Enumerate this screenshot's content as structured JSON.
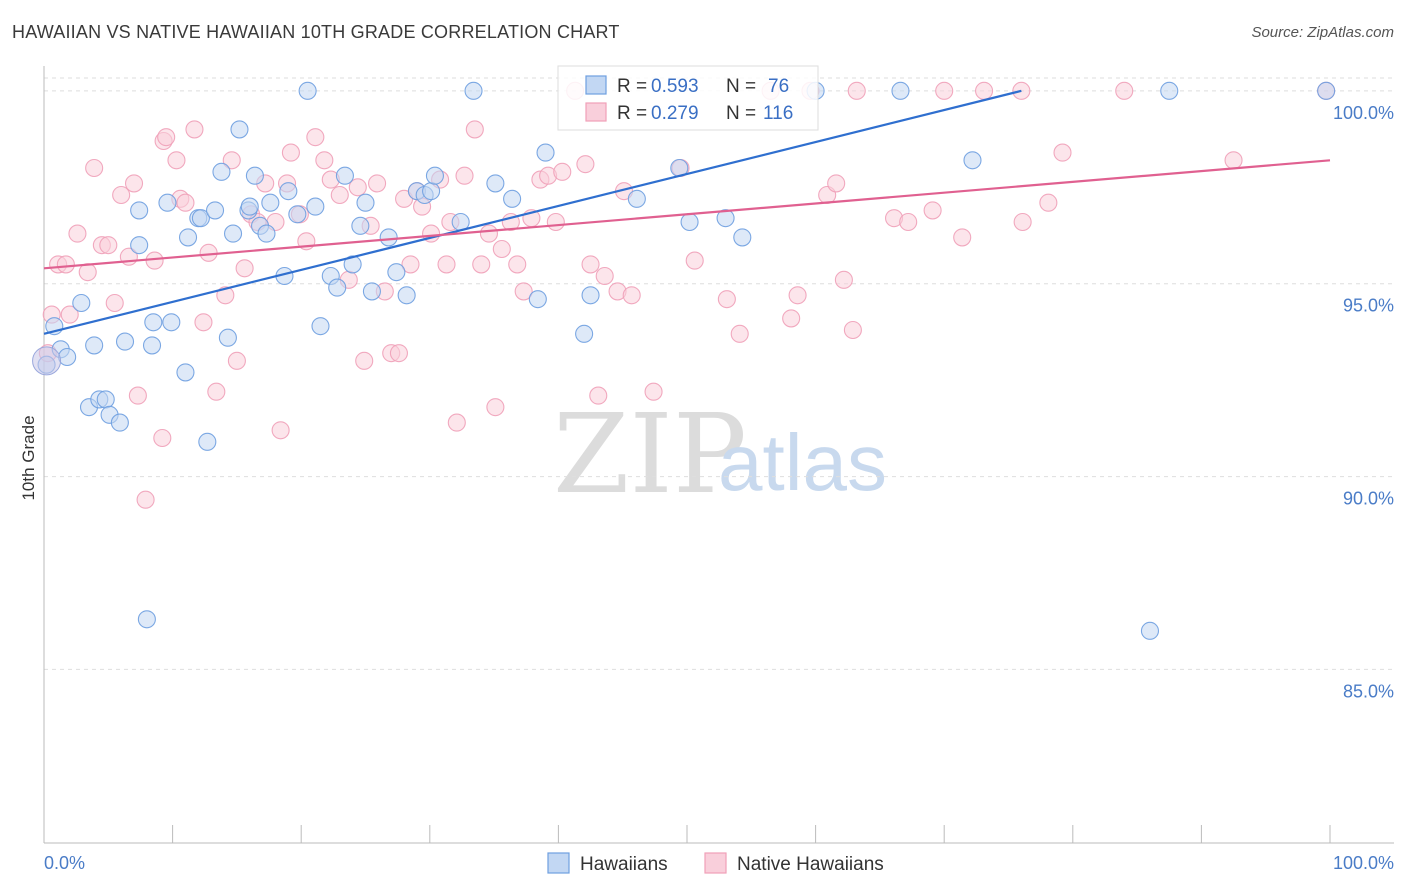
{
  "header": {
    "title": "HAWAIIAN VS NATIVE HAWAIIAN 10TH GRADE CORRELATION CHART",
    "source": "Source: ZipAtlas.com"
  },
  "watermark": {
    "zip": "ZIP",
    "atlas": "atlas"
  },
  "legend": {
    "rows": [
      {
        "r_label": "R =",
        "r_value": "0.593",
        "n_label": "N =",
        "n_value": "76",
        "color": "#6e9fe0"
      },
      {
        "r_label": "R =",
        "r_value": "0.279",
        "n_label": "N =",
        "n_value": "116",
        "color": "#f0a0b8"
      }
    ]
  },
  "bottom_legend": {
    "items": [
      {
        "label": "Hawaiians"
      },
      {
        "label": "Native Hawaiians"
      }
    ]
  },
  "chart_data": {
    "type": "scatter",
    "title": "HAWAIIAN VS NATIVE HAWAIIAN 10TH GRADE CORRELATION CHART",
    "xlabel": "",
    "ylabel": "10th Grade",
    "xlim": [
      0,
      100
    ],
    "ylim": [
      80.5,
      100.8
    ],
    "x_tick_labels": [
      "0.0%",
      "100.0%"
    ],
    "y_ticks": [
      85,
      90,
      95,
      100
    ],
    "y_tick_labels": [
      "85.0%",
      "90.0%",
      "95.0%",
      "100.0%"
    ],
    "grid": true,
    "legend_position": "top-center",
    "series": [
      {
        "name": "Hawaiians",
        "color": "#6e9fe0",
        "line_color": "#2f6fcf",
        "R": 0.593,
        "N": 76,
        "trend": {
          "x": [
            0,
            76
          ],
          "y": [
            93.7,
            100
          ]
        },
        "points": [
          [
            0.2,
            92.9
          ],
          [
            0.8,
            93.9
          ],
          [
            1.3,
            93.3
          ],
          [
            1.8,
            93.1
          ],
          [
            2.9,
            94.5
          ],
          [
            3.5,
            91.8
          ],
          [
            3.9,
            93.4
          ],
          [
            4.3,
            92
          ],
          [
            4.8,
            92
          ],
          [
            5.1,
            91.6
          ],
          [
            5.9,
            91.4
          ],
          [
            6.3,
            93.5
          ],
          [
            7.4,
            96
          ],
          [
            7.4,
            96.9
          ],
          [
            8.0,
            86.3
          ],
          [
            8.4,
            93.4
          ],
          [
            8.5,
            94
          ],
          [
            9.6,
            97.1
          ],
          [
            9.9,
            94
          ],
          [
            11.0,
            92.7
          ],
          [
            11.2,
            96.2
          ],
          [
            12.0,
            96.7
          ],
          [
            12.2,
            96.7
          ],
          [
            12.7,
            90.9
          ],
          [
            13.3,
            96.9
          ],
          [
            13.8,
            97.9
          ],
          [
            14.3,
            93.6
          ],
          [
            14.7,
            96.3
          ],
          [
            15.2,
            99
          ],
          [
            15.9,
            96.9
          ],
          [
            16.0,
            97
          ],
          [
            16.4,
            97.8
          ],
          [
            16.8,
            96.5
          ],
          [
            17.3,
            96.3
          ],
          [
            17.6,
            97.1
          ],
          [
            18.7,
            95.2
          ],
          [
            19.0,
            97.4
          ],
          [
            19.7,
            96.8
          ],
          [
            20.5,
            100
          ],
          [
            21.1,
            97
          ],
          [
            21.5,
            93.9
          ],
          [
            22.3,
            95.2
          ],
          [
            22.8,
            94.9
          ],
          [
            23.4,
            97.8
          ],
          [
            24.0,
            95.5
          ],
          [
            24.6,
            96.5
          ],
          [
            25.0,
            97.1
          ],
          [
            25.5,
            94.8
          ],
          [
            26.8,
            96.2
          ],
          [
            27.4,
            95.3
          ],
          [
            28.2,
            94.7
          ],
          [
            29.0,
            97.4
          ],
          [
            29.6,
            97.3
          ],
          [
            30.1,
            97.4
          ],
          [
            30.4,
            97.8
          ],
          [
            32.4,
            96.6
          ],
          [
            33.4,
            100
          ],
          [
            35.1,
            97.6
          ],
          [
            36.4,
            97.2
          ],
          [
            38.4,
            94.6
          ],
          [
            39.0,
            98.4
          ],
          [
            42.0,
            93.7
          ],
          [
            42.5,
            94.7
          ],
          [
            46.1,
            97.2
          ],
          [
            49.4,
            98
          ],
          [
            50.2,
            96.6
          ],
          [
            53.0,
            96.7
          ],
          [
            54.3,
            96.2
          ],
          [
            60.0,
            100
          ],
          [
            66.6,
            100
          ],
          [
            72.2,
            98.2
          ],
          [
            87.5,
            100
          ],
          [
            99.7,
            100
          ],
          [
            86.0,
            86.0
          ]
        ]
      },
      {
        "name": "Native Hawaiians",
        "color": "#f0a0b8",
        "line_color": "#e06090",
        "R": 0.279,
        "N": 116,
        "trend": {
          "x": [
            0,
            100
          ],
          "y": [
            95.4,
            98.2
          ]
        },
        "points": [
          [
            0.3,
            93.2
          ],
          [
            0.6,
            94.2
          ],
          [
            1.1,
            95.5
          ],
          [
            1.7,
            95.5
          ],
          [
            2.0,
            94.2
          ],
          [
            2.6,
            96.3
          ],
          [
            3.4,
            95.3
          ],
          [
            3.9,
            98
          ],
          [
            4.5,
            96
          ],
          [
            5.0,
            96
          ],
          [
            5.5,
            94.5
          ],
          [
            6.0,
            97.3
          ],
          [
            6.6,
            95.7
          ],
          [
            7.0,
            97.6
          ],
          [
            7.3,
            92.1
          ],
          [
            7.9,
            89.4
          ],
          [
            8.6,
            95.6
          ],
          [
            9.2,
            91
          ],
          [
            9.3,
            98.7
          ],
          [
            9.5,
            98.8
          ],
          [
            10.3,
            98.2
          ],
          [
            10.6,
            97.2
          ],
          [
            11.0,
            97.1
          ],
          [
            11.7,
            99
          ],
          [
            12.4,
            94
          ],
          [
            12.8,
            95.8
          ],
          [
            13.4,
            92.2
          ],
          [
            14.1,
            94.7
          ],
          [
            14.6,
            98.2
          ],
          [
            15.0,
            93
          ],
          [
            15.6,
            95.4
          ],
          [
            16.1,
            96.8
          ],
          [
            16.6,
            96.6
          ],
          [
            17.2,
            97.6
          ],
          [
            18.0,
            96.6
          ],
          [
            18.4,
            91.2
          ],
          [
            18.9,
            97.6
          ],
          [
            19.2,
            98.4
          ],
          [
            19.9,
            96.8
          ],
          [
            20.4,
            96.1
          ],
          [
            21.1,
            98.8
          ],
          [
            21.8,
            98.2
          ],
          [
            22.3,
            97.7
          ],
          [
            23.0,
            97.3
          ],
          [
            23.7,
            95.1
          ],
          [
            24.4,
            97.5
          ],
          [
            24.9,
            93
          ],
          [
            25.4,
            96.5
          ],
          [
            25.9,
            97.6
          ],
          [
            26.5,
            94.8
          ],
          [
            27.0,
            93.2
          ],
          [
            27.6,
            93.2
          ],
          [
            28.0,
            97.2
          ],
          [
            28.5,
            95.5
          ],
          [
            29.0,
            97.4
          ],
          [
            29.4,
            97
          ],
          [
            30.1,
            96.3
          ],
          [
            30.8,
            97.7
          ],
          [
            31.3,
            95.5
          ],
          [
            31.6,
            96.6
          ],
          [
            32.1,
            91.4
          ],
          [
            32.7,
            97.8
          ],
          [
            33.5,
            99
          ],
          [
            34.0,
            95.5
          ],
          [
            34.6,
            96.3
          ],
          [
            35.1,
            91.8
          ],
          [
            35.6,
            95.9
          ],
          [
            36.3,
            96.6
          ],
          [
            36.8,
            95.5
          ],
          [
            37.3,
            94.8
          ],
          [
            37.9,
            96.7
          ],
          [
            38.6,
            97.7
          ],
          [
            39.2,
            97.8
          ],
          [
            39.8,
            96.6
          ],
          [
            40.3,
            97.9
          ],
          [
            41.3,
            100
          ],
          [
            42.1,
            98.1
          ],
          [
            42.5,
            95.5
          ],
          [
            43.1,
            92.1
          ],
          [
            43.6,
            95.2
          ],
          [
            44.6,
            94.8
          ],
          [
            45.1,
            97.4
          ],
          [
            45.7,
            94.7
          ],
          [
            47.4,
            92.2
          ],
          [
            49.5,
            98
          ],
          [
            50.6,
            95.6
          ],
          [
            53.1,
            94.6
          ],
          [
            54.1,
            93.7
          ],
          [
            56.5,
            100
          ],
          [
            58.1,
            94.1
          ],
          [
            58.6,
            94.7
          ],
          [
            59.6,
            100
          ],
          [
            60.9,
            97.3
          ],
          [
            61.6,
            97.6
          ],
          [
            62.2,
            95.1
          ],
          [
            62.9,
            93.8
          ],
          [
            63.2,
            100
          ],
          [
            66.1,
            96.7
          ],
          [
            67.2,
            96.6
          ],
          [
            69.1,
            96.9
          ],
          [
            71.4,
            96.2
          ],
          [
            73.1,
            100
          ],
          [
            76.1,
            96.6
          ],
          [
            78.1,
            97.1
          ],
          [
            79.2,
            98.4
          ],
          [
            92.5,
            98.2
          ],
          [
            99.7,
            100
          ],
          [
            84.0,
            100
          ],
          [
            76.0,
            100
          ],
          [
            70.0,
            100
          ]
        ]
      }
    ]
  }
}
